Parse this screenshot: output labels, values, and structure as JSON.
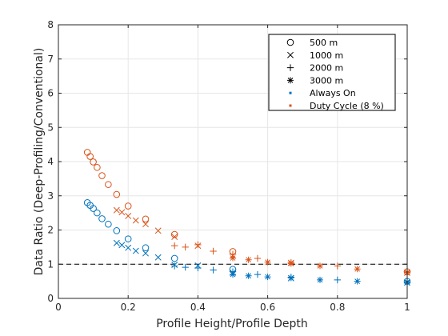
{
  "chart_data": {
    "type": "scatter",
    "xlabel": "Profile Height/Profile Depth",
    "ylabel": "Data Ratio (Deep-Profiling/Conventional)",
    "xlim": [
      0,
      1
    ],
    "ylim": [
      0,
      8
    ],
    "xticks": [
      "0",
      "0.2",
      "0.4",
      "0.6",
      "0.8",
      "1"
    ],
    "yticks": [
      "0",
      "1",
      "2",
      "3",
      "4",
      "5",
      "6",
      "7",
      "8"
    ],
    "grid": true,
    "reference_line": {
      "y": 1,
      "style": "dashed"
    },
    "legend_position": "top-right",
    "colors": {
      "always_on": "#0072BD",
      "duty_cycle": "#D95319"
    },
    "legend": {
      "markers": [
        {
          "marker": "circle",
          "label": "500 m"
        },
        {
          "marker": "x",
          "label": "1000 m"
        },
        {
          "marker": "plus",
          "label": "2000 m"
        },
        {
          "marker": "star",
          "label": "3000 m"
        }
      ],
      "modes": [
        {
          "color": "#0072BD",
          "label": "Always On"
        },
        {
          "color": "#D95319",
          "label": "Duty Cycle (8 %)"
        }
      ]
    },
    "series": [
      {
        "marker": "circle",
        "mode": "always_on",
        "x": [
          0.083,
          0.091,
          0.1,
          0.111,
          0.125,
          0.143,
          0.167,
          0.2,
          0.25,
          0.333,
          0.5,
          1.0
        ],
        "y": [
          2.8,
          2.72,
          2.63,
          2.5,
          2.33,
          2.17,
          1.98,
          1.74,
          1.48,
          1.17,
          0.85,
          0.5
        ]
      },
      {
        "marker": "circle",
        "mode": "duty_cycle",
        "x": [
          0.083,
          0.091,
          0.1,
          0.111,
          0.125,
          0.143,
          0.167,
          0.2,
          0.25,
          0.333,
          0.5,
          1.0
        ],
        "y": [
          4.27,
          4.15,
          3.99,
          3.83,
          3.59,
          3.33,
          3.04,
          2.7,
          2.32,
          1.87,
          1.37,
          0.78
        ]
      },
      {
        "marker": "x",
        "mode": "always_on",
        "x": [
          0.167,
          0.182,
          0.2,
          0.222,
          0.25,
          0.286,
          0.333,
          0.4,
          0.5,
          0.667,
          1.0
        ],
        "y": [
          1.62,
          1.56,
          1.48,
          1.39,
          1.32,
          1.2,
          0.98,
          0.96,
          0.75,
          0.59,
          0.46
        ]
      },
      {
        "marker": "x",
        "mode": "duty_cycle",
        "x": [
          0.167,
          0.182,
          0.2,
          0.222,
          0.25,
          0.286,
          0.333,
          0.4,
          0.5,
          0.667,
          1.0
        ],
        "y": [
          2.58,
          2.52,
          2.41,
          2.28,
          2.17,
          1.98,
          1.8,
          1.54,
          1.25,
          1.04,
          0.75
        ]
      },
      {
        "marker": "plus",
        "mode": "always_on",
        "x": [
          0.333,
          0.364,
          0.4,
          0.444,
          0.5,
          0.571,
          0.667,
          0.8,
          1.0
        ],
        "y": [
          0.95,
          0.91,
          0.89,
          0.83,
          0.78,
          0.7,
          0.62,
          0.54,
          0.45
        ]
      },
      {
        "marker": "plus",
        "mode": "duty_cycle",
        "x": [
          0.333,
          0.364,
          0.4,
          0.444,
          0.5,
          0.571,
          0.667,
          0.8,
          1.0
        ],
        "y": [
          1.54,
          1.5,
          1.57,
          1.38,
          1.29,
          1.17,
          1.05,
          0.95,
          0.79
        ]
      },
      {
        "marker": "star",
        "mode": "always_on",
        "x": [
          0.5,
          0.545,
          0.6,
          0.667,
          0.75,
          0.857,
          1.0
        ],
        "y": [
          0.7,
          0.66,
          0.63,
          0.6,
          0.54,
          0.5,
          0.48
        ]
      },
      {
        "marker": "star",
        "mode": "duty_cycle",
        "x": [
          0.5,
          0.545,
          0.6,
          0.667,
          0.75,
          0.857,
          1.0
        ],
        "y": [
          1.18,
          1.13,
          1.06,
          1.02,
          0.95,
          0.86,
          0.76
        ]
      }
    ]
  }
}
